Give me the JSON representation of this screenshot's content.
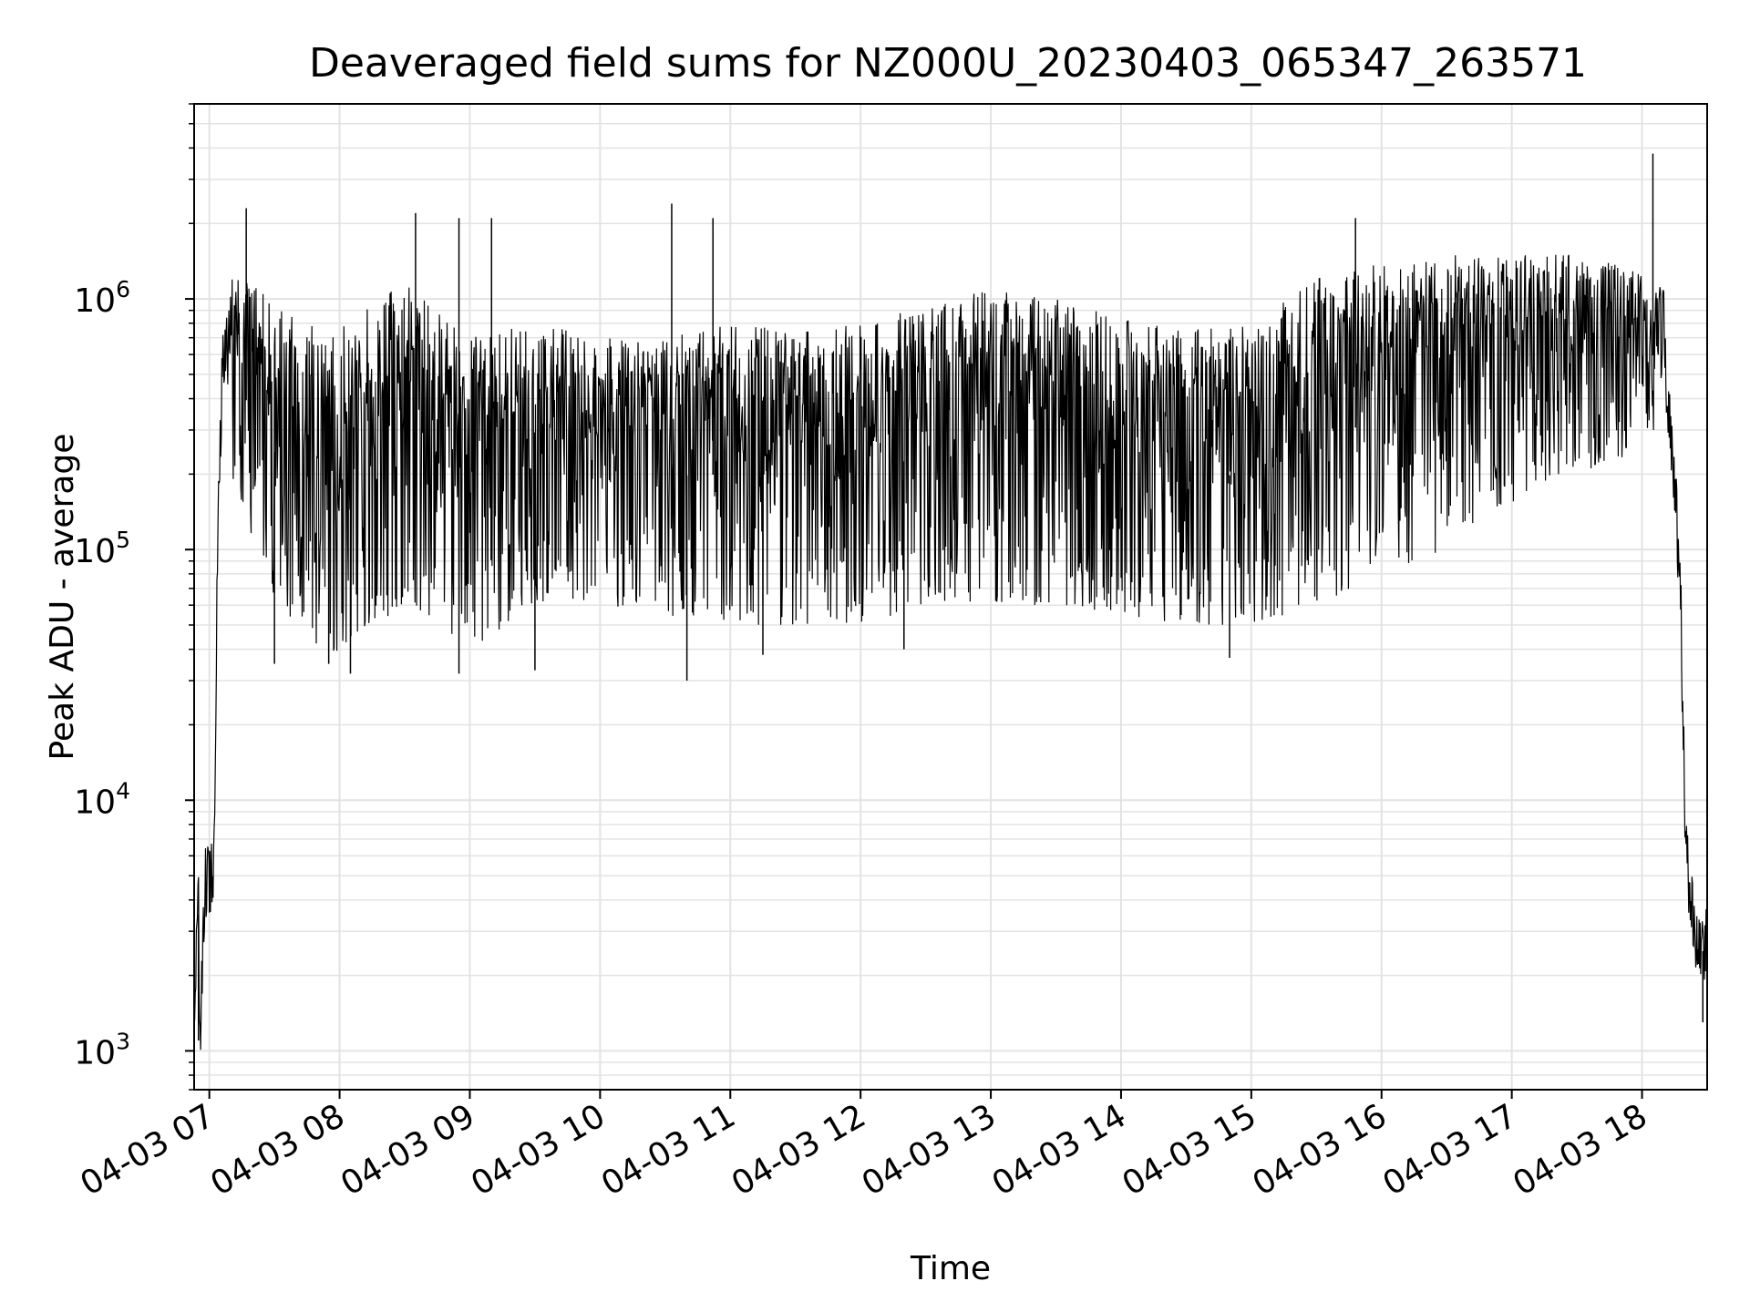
{
  "chart_data": {
    "type": "line",
    "title": "Deaveraged field sums for NZ000U_20230403_065347_263571",
    "xlabel": "Time",
    "ylabel": "Peak ADU - average",
    "yscale": "log",
    "grid": true,
    "grid_minor": true,
    "legend": "none",
    "xlim": [
      "2023-04-03 06:53",
      "2023-04-03 18:30"
    ],
    "ylim": [
      700,
      6000000
    ],
    "xticks": [
      "04-03 07",
      "04-03 08",
      "04-03 09",
      "04-03 10",
      "04-03 11",
      "04-03 12",
      "04-03 13",
      "04-03 14",
      "04-03 15",
      "04-03 16",
      "04-03 17",
      "04-03 18"
    ],
    "yticks": [
      {
        "value": 1000,
        "base": "10",
        "exp": "3"
      },
      {
        "value": 10000,
        "base": "10",
        "exp": "4"
      },
      {
        "value": 100000,
        "base": "10",
        "exp": "5"
      },
      {
        "value": 1000000,
        "base": "10",
        "exp": "6"
      }
    ],
    "series": [
      {
        "color": "#000000",
        "points": [
          {
            "x": "2023-04-03 06:53",
            "y": 1500
          },
          {
            "x": "2023-04-03 06:55",
            "y": 3500
          },
          {
            "x": "2023-04-03 06:56",
            "y": 1100
          },
          {
            "x": "2023-04-03 06:58",
            "y": 4500
          },
          {
            "x": "2023-04-03 07:00",
            "y": 5000
          },
          {
            "x": "2023-04-03 07:02",
            "y": 5500
          },
          {
            "x": "2023-04-03 07:04",
            "y": 150000
          },
          {
            "x": "2023-04-03 07:06",
            "y": 500000
          },
          {
            "x": "2023-04-03 07:10",
            "y": 800000
          },
          {
            "x": "2023-04-03 07:15",
            "y": 300000
          },
          {
            "x": "2023-04-03 07:20",
            "y": 600000
          },
          {
            "x": "2023-04-03 07:30",
            "y": 400000
          },
          {
            "x": "2023-04-03 08:00",
            "y": 300000
          },
          {
            "x": "2023-04-03 09:00",
            "y": 300000
          },
          {
            "x": "2023-04-03 10:00",
            "y": 300000
          },
          {
            "x": "2023-04-03 11:00",
            "y": 300000
          },
          {
            "x": "2023-04-03 12:00",
            "y": 350000
          },
          {
            "x": "2023-04-03 13:00",
            "y": 500000
          },
          {
            "x": "2023-04-03 14:00",
            "y": 350000
          },
          {
            "x": "2023-04-03 15:00",
            "y": 350000
          },
          {
            "x": "2023-04-03 16:00",
            "y": 600000
          },
          {
            "x": "2023-04-03 17:00",
            "y": 650000
          },
          {
            "x": "2023-04-03 18:00",
            "y": 750000
          },
          {
            "x": "2023-04-03 18:10",
            "y": 700000
          },
          {
            "x": "2023-04-03 18:15",
            "y": 200000
          },
          {
            "x": "2023-04-03 18:18",
            "y": 50000
          },
          {
            "x": "2023-04-03 18:20",
            "y": 8000
          },
          {
            "x": "2023-04-03 18:22",
            "y": 4000
          },
          {
            "x": "2023-04-03 18:25",
            "y": 3000
          },
          {
            "x": "2023-04-03 18:28",
            "y": 2500
          },
          {
            "x": "2023-04-03 18:30",
            "y": 3500
          }
        ],
        "envelope": [
          {
            "x": "2023-04-03 07:10",
            "high": 1300000,
            "low": 200000
          },
          {
            "x": "2023-04-03 07:30",
            "high": 1000000,
            "low": 60000
          },
          {
            "x": "2023-04-03 07:55",
            "high": 700000,
            "low": 35000
          },
          {
            "x": "2023-04-03 08:30",
            "high": 1200000,
            "low": 60000
          },
          {
            "x": "2023-04-03 09:00",
            "high": 700000,
            "low": 40000
          },
          {
            "x": "2023-04-03 09:30",
            "high": 800000,
            "low": 60000
          },
          {
            "x": "2023-04-03 10:00",
            "high": 700000,
            "low": 60000
          },
          {
            "x": "2023-04-03 10:30",
            "high": 700000,
            "low": 55000
          },
          {
            "x": "2023-04-03 11:00",
            "high": 800000,
            "low": 50000
          },
          {
            "x": "2023-04-03 11:30",
            "high": 750000,
            "low": 50000
          },
          {
            "x": "2023-04-03 12:00",
            "high": 800000,
            "low": 50000
          },
          {
            "x": "2023-04-03 12:30",
            "high": 950000,
            "low": 60000
          },
          {
            "x": "2023-04-03 13:00",
            "high": 1100000,
            "low": 60000
          },
          {
            "x": "2023-04-03 13:30",
            "high": 1000000,
            "low": 60000
          },
          {
            "x": "2023-04-03 14:00",
            "high": 850000,
            "low": 55000
          },
          {
            "x": "2023-04-03 14:30",
            "high": 750000,
            "low": 50000
          },
          {
            "x": "2023-04-03 15:00",
            "high": 800000,
            "low": 50000
          },
          {
            "x": "2023-04-03 15:30",
            "high": 1200000,
            "low": 60000
          },
          {
            "x": "2023-04-03 16:00",
            "high": 1400000,
            "low": 80000
          },
          {
            "x": "2023-04-03 16:30",
            "high": 1500000,
            "low": 100000
          },
          {
            "x": "2023-04-03 17:00",
            "high": 1500000,
            "low": 150000
          },
          {
            "x": "2023-04-03 17:30",
            "high": 1500000,
            "low": 200000
          },
          {
            "x": "2023-04-03 18:00",
            "high": 1300000,
            "low": 250000
          },
          {
            "x": "2023-04-03 18:10",
            "high": 1100000,
            "low": 350000
          }
        ],
        "spikes": [
          {
            "x": "2023-04-03 07:17",
            "y": 2300000
          },
          {
            "x": "2023-04-03 08:35",
            "y": 2200000
          },
          {
            "x": "2023-04-03 08:55",
            "y": 2100000
          },
          {
            "x": "2023-04-03 09:10",
            "y": 2100000
          },
          {
            "x": "2023-04-03 10:33",
            "y": 2400000
          },
          {
            "x": "2023-04-03 10:52",
            "y": 2100000
          },
          {
            "x": "2023-04-03 15:48",
            "y": 2100000
          },
          {
            "x": "2023-04-03 18:05",
            "y": 3800000
          },
          {
            "x": "2023-04-03 06:55",
            "y": 1100
          },
          {
            "x": "2023-04-03 07:30",
            "y": 35000
          },
          {
            "x": "2023-04-03 07:55",
            "y": 35000
          },
          {
            "x": "2023-04-03 08:05",
            "y": 32000
          },
          {
            "x": "2023-04-03 08:55",
            "y": 32000
          },
          {
            "x": "2023-04-03 09:30",
            "y": 33000
          },
          {
            "x": "2023-04-03 10:40",
            "y": 30000
          },
          {
            "x": "2023-04-03 11:15",
            "y": 38000
          },
          {
            "x": "2023-04-03 12:20",
            "y": 40000
          },
          {
            "x": "2023-04-03 14:50",
            "y": 37000
          },
          {
            "x": "2023-04-03 18:28",
            "y": 1300
          }
        ]
      }
    ]
  }
}
